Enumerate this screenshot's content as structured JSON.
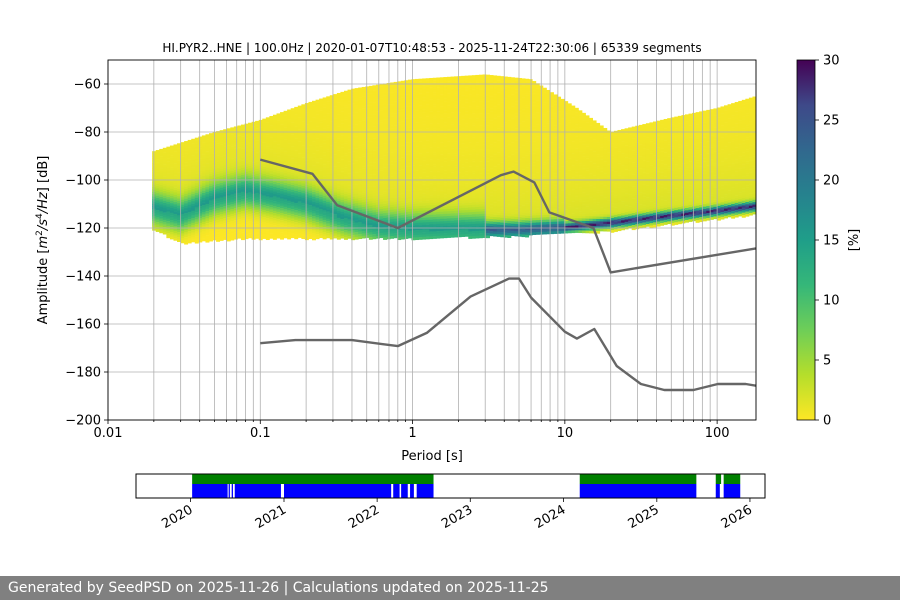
{
  "footer": {
    "text": "Generated by SeedPSD on 2025-11-26 | Calculations updated on 2025-11-25",
    "background": "#808080"
  },
  "chart_data": [
    {
      "type": "heatmap",
      "title": "HI.PYR2..HNE | 100.0Hz | 2020-01-07T10:48:53 - 2025-11-24T22:30:06 | 65339 segments",
      "xlabel": "Period [s]",
      "ylabel_parts": [
        "Amplitude [",
        "m",
        "2",
        "/",
        "s",
        "4",
        "/",
        "Hz",
        "] [dB]"
      ],
      "x_scale": "log",
      "xlim": [
        0.01,
        180
      ],
      "ylim": [
        -200,
        -50
      ],
      "x_ticks": [
        {
          "value": 0.01,
          "label": "0.01"
        },
        {
          "value": 0.1,
          "label": "0.1"
        },
        {
          "value": 1,
          "label": "1"
        },
        {
          "value": 10,
          "label": "10"
        },
        {
          "value": 100,
          "label": "100"
        }
      ],
      "y_ticks": [
        {
          "value": -60,
          "label": "−60"
        },
        {
          "value": -80,
          "label": "−80"
        },
        {
          "value": -100,
          "label": "−100"
        },
        {
          "value": -120,
          "label": "−120"
        },
        {
          "value": -140,
          "label": "−140"
        },
        {
          "value": -160,
          "label": "−160"
        },
        {
          "value": -180,
          "label": "−180"
        },
        {
          "value": -200,
          "label": "−200"
        }
      ],
      "grid": true,
      "colormap": "viridis_r",
      "colorbar": {
        "label": "[%]",
        "range": [
          0,
          30
        ],
        "ticks": [
          {
            "value": 0,
            "label": "0"
          },
          {
            "value": 5,
            "label": "5"
          },
          {
            "value": 10,
            "label": "10"
          },
          {
            "value": 15,
            "label": "15"
          },
          {
            "value": 20,
            "label": "20"
          },
          {
            "value": 25,
            "label": "25"
          },
          {
            "value": 30,
            "label": "30"
          }
        ]
      },
      "psd_mode": [
        {
          "period": 0.02,
          "db": -112
        },
        {
          "period": 0.03,
          "db": -115
        },
        {
          "period": 0.05,
          "db": -108
        },
        {
          "period": 0.08,
          "db": -105
        },
        {
          "period": 0.12,
          "db": -107
        },
        {
          "period": 0.2,
          "db": -110
        },
        {
          "period": 0.35,
          "db": -116
        },
        {
          "period": 0.6,
          "db": -120
        },
        {
          "period": 1,
          "db": -121
        },
        {
          "period": 2,
          "db": -121
        },
        {
          "period": 5,
          "db": -121
        },
        {
          "period": 10,
          "db": -120
        },
        {
          "period": 20,
          "db": -118
        },
        {
          "period": 50,
          "db": -115
        },
        {
          "period": 100,
          "db": -113
        },
        {
          "period": 180,
          "db": -111
        }
      ],
      "psd_upper_envelope": [
        {
          "period": 0.02,
          "db": -88
        },
        {
          "period": 0.05,
          "db": -80
        },
        {
          "period": 0.1,
          "db": -75
        },
        {
          "period": 0.2,
          "db": -68
        },
        {
          "period": 0.4,
          "db": -62
        },
        {
          "period": 1,
          "db": -58
        },
        {
          "period": 3,
          "db": -56
        },
        {
          "period": 6,
          "db": -58
        },
        {
          "period": 12,
          "db": -70
        },
        {
          "period": 20,
          "db": -80
        },
        {
          "period": 50,
          "db": -74
        },
        {
          "period": 100,
          "db": -70
        },
        {
          "period": 180,
          "db": -65
        }
      ],
      "psd_lower_envelope": [
        {
          "period": 0.02,
          "db": -120
        },
        {
          "period": 0.03,
          "db": -126
        },
        {
          "period": 0.08,
          "db": -124
        },
        {
          "period": 0.3,
          "db": -124
        },
        {
          "period": 1,
          "db": -124
        },
        {
          "period": 5,
          "db": -123
        },
        {
          "period": 10,
          "db": -122
        },
        {
          "period": 20,
          "db": -121
        },
        {
          "period": 50,
          "db": -118
        },
        {
          "period": 100,
          "db": -116
        },
        {
          "period": 180,
          "db": -114
        }
      ],
      "reference_curves": [
        {
          "points": [
            {
              "x": 0.1,
              "y": -91.5
            },
            {
              "x": 0.22,
              "y": -97.4
            },
            {
              "x": 0.32,
              "y": -110.5
            },
            {
              "x": 0.8,
              "y": -120
            },
            {
              "x": 3.8,
              "y": -98
            },
            {
              "x": 4.6,
              "y": -96.5
            },
            {
              "x": 6.3,
              "y": -101
            },
            {
              "x": 7.9,
              "y": -113.5
            },
            {
              "x": 15.4,
              "y": -120
            },
            {
              "x": 20,
              "y": -138.5
            },
            {
              "x": 180,
              "y": -128.5
            }
          ]
        },
        {
          "points": [
            {
              "x": 0.1,
              "y": -168
            },
            {
              "x": 0.17,
              "y": -166.7
            },
            {
              "x": 0.4,
              "y": -166.7
            },
            {
              "x": 0.8,
              "y": -169.2
            },
            {
              "x": 1.24,
              "y": -163.7
            },
            {
              "x": 2.4,
              "y": -148.6
            },
            {
              "x": 4.3,
              "y": -141.1
            },
            {
              "x": 5.0,
              "y": -141.1
            },
            {
              "x": 6.0,
              "y": -149
            },
            {
              "x": 10,
              "y": -163.2
            },
            {
              "x": 12,
              "y": -166.1
            },
            {
              "x": 15.6,
              "y": -162.1
            },
            {
              "x": 21.9,
              "y": -177.5
            },
            {
              "x": 31.6,
              "y": -185
            },
            {
              "x": 45,
              "y": -187.5
            },
            {
              "x": 70,
              "y": -187.5
            },
            {
              "x": 101,
              "y": -185
            },
            {
              "x": 154,
              "y": -185
            },
            {
              "x": 180,
              "y": -185.7
            }
          ]
        }
      ],
      "reference_color": "#666666"
    },
    {
      "type": "timeline",
      "x_ticks": [
        "2020",
        "2021",
        "2022",
        "2023",
        "2024",
        "2025",
        "2026"
      ],
      "xlim": [
        "2019-06-01",
        "2026-03-01"
      ],
      "data_color": "#008000",
      "psd_color": "#0000ff",
      "data_intervals": [
        [
          "2020-01-07",
          "2022-08-10"
        ],
        [
          "2024-03-05",
          "2025-06-05"
        ],
        [
          "2025-08-20",
          "2025-09-10"
        ],
        [
          "2025-09-20",
          "2025-11-24"
        ]
      ],
      "psd_intervals": [
        [
          "2020-01-07",
          "2020-05-25"
        ],
        [
          "2020-05-29",
          "2020-06-03"
        ],
        [
          "2020-06-10",
          "2020-06-15"
        ],
        [
          "2020-06-22",
          "2020-12-20"
        ],
        [
          "2021-01-01",
          "2022-02-25"
        ],
        [
          "2022-03-05",
          "2022-03-30"
        ],
        [
          "2022-04-05",
          "2022-05-01"
        ],
        [
          "2022-05-10",
          "2022-05-25"
        ],
        [
          "2022-06-05",
          "2022-08-10"
        ],
        [
          "2024-03-05",
          "2025-06-05"
        ],
        [
          "2025-08-20",
          "2025-09-05"
        ],
        [
          "2025-09-20",
          "2025-11-24"
        ]
      ]
    }
  ]
}
